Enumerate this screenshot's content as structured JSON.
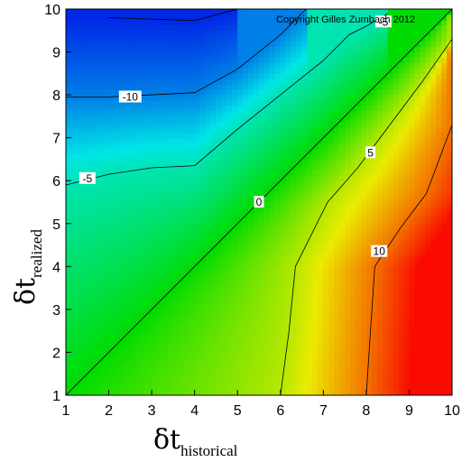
{
  "chart_data": {
    "type": "heatmap",
    "subtype": "filled-contour",
    "copyright": "Copyright Gilles Zumbach 2012",
    "xlabel": {
      "symbol": "δt",
      "subscript": "historical"
    },
    "ylabel": {
      "symbol": "δt",
      "subscript": "realized"
    },
    "xlim": [
      1,
      10
    ],
    "ylim": [
      1,
      10
    ],
    "x_ticks": [
      "1",
      "2",
      "3",
      "4",
      "5",
      "6",
      "7",
      "8",
      "9",
      "10"
    ],
    "y_ticks": [
      "1",
      "2",
      "3",
      "4",
      "5",
      "6",
      "7",
      "8",
      "9",
      "10"
    ],
    "colormap": "rainbow",
    "color_range": [
      -13,
      13
    ],
    "contours": [
      {
        "level": 10,
        "label": "10",
        "points": [
          [
            8,
            1
          ],
          [
            8.1,
            2.5
          ],
          [
            8.2,
            4
          ],
          [
            8.8,
            4.9
          ],
          [
            9.4,
            5.7
          ],
          [
            10,
            7.3
          ]
        ]
      },
      {
        "level": 5,
        "label": "5",
        "points": [
          [
            6,
            1
          ],
          [
            6.2,
            2.5
          ],
          [
            6.3,
            3.5
          ],
          [
            6.35,
            4
          ],
          [
            7.1,
            5.5
          ],
          [
            7.8,
            6.3
          ],
          [
            8.4,
            7.1
          ],
          [
            9.3,
            8.3
          ],
          [
            10,
            9.3
          ]
        ]
      },
      {
        "level": 0,
        "label": "0",
        "points": [
          [
            1,
            1
          ],
          [
            10,
            10
          ]
        ]
      },
      {
        "level": -5,
        "label": "-5",
        "points": [
          [
            1,
            5.9
          ],
          [
            2,
            6.15
          ],
          [
            3,
            6.3
          ],
          [
            4,
            6.35
          ],
          [
            5,
            7.2
          ],
          [
            6,
            8
          ],
          [
            7,
            8.8
          ],
          [
            7.6,
            9.4
          ],
          [
            8,
            9.6
          ],
          [
            8.5,
            9.9
          ]
        ]
      },
      {
        "level": -10,
        "label": "-10",
        "points": [
          [
            1,
            7.95
          ],
          [
            2,
            7.95
          ],
          [
            4,
            8.05
          ],
          [
            5,
            8.6
          ],
          [
            6,
            9.4
          ],
          [
            6.6,
            10
          ]
        ]
      },
      {
        "level": -13,
        "label": "",
        "points": [
          [
            2,
            9.8
          ],
          [
            4,
            9.73
          ],
          [
            5,
            10
          ]
        ]
      }
    ],
    "contour_label_positions": [
      {
        "label": "10",
        "x": 8.3,
        "y": 4.35
      },
      {
        "label": "5",
        "x": 8.1,
        "y": 6.65
      },
      {
        "label": "0",
        "x": 5.5,
        "y": 5.5
      },
      {
        "label": "-5",
        "x": 1.5,
        "y": 6.05
      },
      {
        "label": "-10",
        "x": 2.5,
        "y": 7.95
      },
      {
        "label": "-5",
        "x": 8.4,
        "y": 9.7
      }
    ]
  }
}
